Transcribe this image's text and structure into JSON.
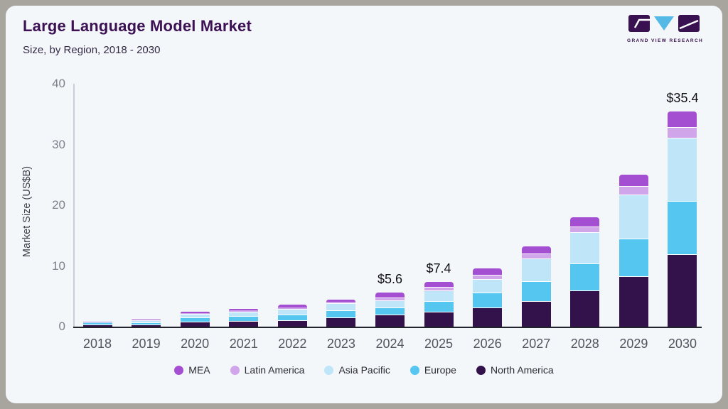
{
  "header": {
    "title": "Large Language Model Market",
    "subtitle": "Size, by Region, 2018 - 2030",
    "logo_text": "GRAND VIEW RESEARCH"
  },
  "colors": {
    "card_background": "#f4f7fa",
    "frame": "#a8a49e",
    "title_text": "#3c1254",
    "axis_line": "#23232d",
    "logo_purple": "#3a1150",
    "logo_blue": "#55b9e6"
  },
  "chart_data": {
    "type": "bar",
    "stacked": true,
    "title": "Large Language Model Market Size, by Region, 2018 - 2030",
    "xlabel": "",
    "ylabel": "Market Size (US$B)",
    "ylim": [
      0,
      40
    ],
    "yticks": [
      0,
      10,
      20,
      30,
      40
    ],
    "grid": false,
    "legend_position": "bottom",
    "categories": [
      "2018",
      "2019",
      "2020",
      "2021",
      "2022",
      "2023",
      "2024",
      "2025",
      "2026",
      "2027",
      "2028",
      "2029",
      "2030"
    ],
    "series": [
      {
        "name": "North America",
        "color": "#33124b",
        "values": [
          0.3,
          0.4,
          0.8,
          0.95,
          1.05,
          1.55,
          1.95,
          2.5,
          3.1,
          4.2,
          6.0,
          8.3,
          11.9
        ]
      },
      {
        "name": "Europe",
        "color": "#54c6f0",
        "values": [
          0.25,
          0.33,
          0.7,
          0.8,
          0.9,
          1.15,
          1.2,
          1.7,
          2.5,
          3.3,
          4.4,
          6.2,
          8.8
        ]
      },
      {
        "name": "Asia Pacific",
        "color": "#bee5f8",
        "values": [
          0.2,
          0.3,
          0.6,
          0.75,
          1.0,
          1.15,
          1.2,
          1.8,
          2.2,
          3.7,
          5.1,
          7.3,
          10.4
        ]
      },
      {
        "name": "Latin America",
        "color": "#d0a5e9",
        "values": [
          0.04,
          0.07,
          0.15,
          0.17,
          0.25,
          0.25,
          0.45,
          0.55,
          0.7,
          0.85,
          0.95,
          1.35,
          1.8
        ]
      },
      {
        "name": "MEA",
        "color": "#a44ed2",
        "values": [
          0.06,
          0.1,
          0.25,
          0.23,
          0.4,
          0.4,
          0.8,
          0.85,
          1.1,
          1.15,
          1.55,
          1.85,
          2.5
        ]
      }
    ],
    "annotations": [
      {
        "category": "2024",
        "text": "$5.6"
      },
      {
        "category": "2025",
        "text": "$7.4"
      },
      {
        "category": "2030",
        "text": "$35.4"
      }
    ],
    "legend": [
      "MEA",
      "Latin America",
      "Asia Pacific",
      "Europe",
      "North America"
    ]
  }
}
